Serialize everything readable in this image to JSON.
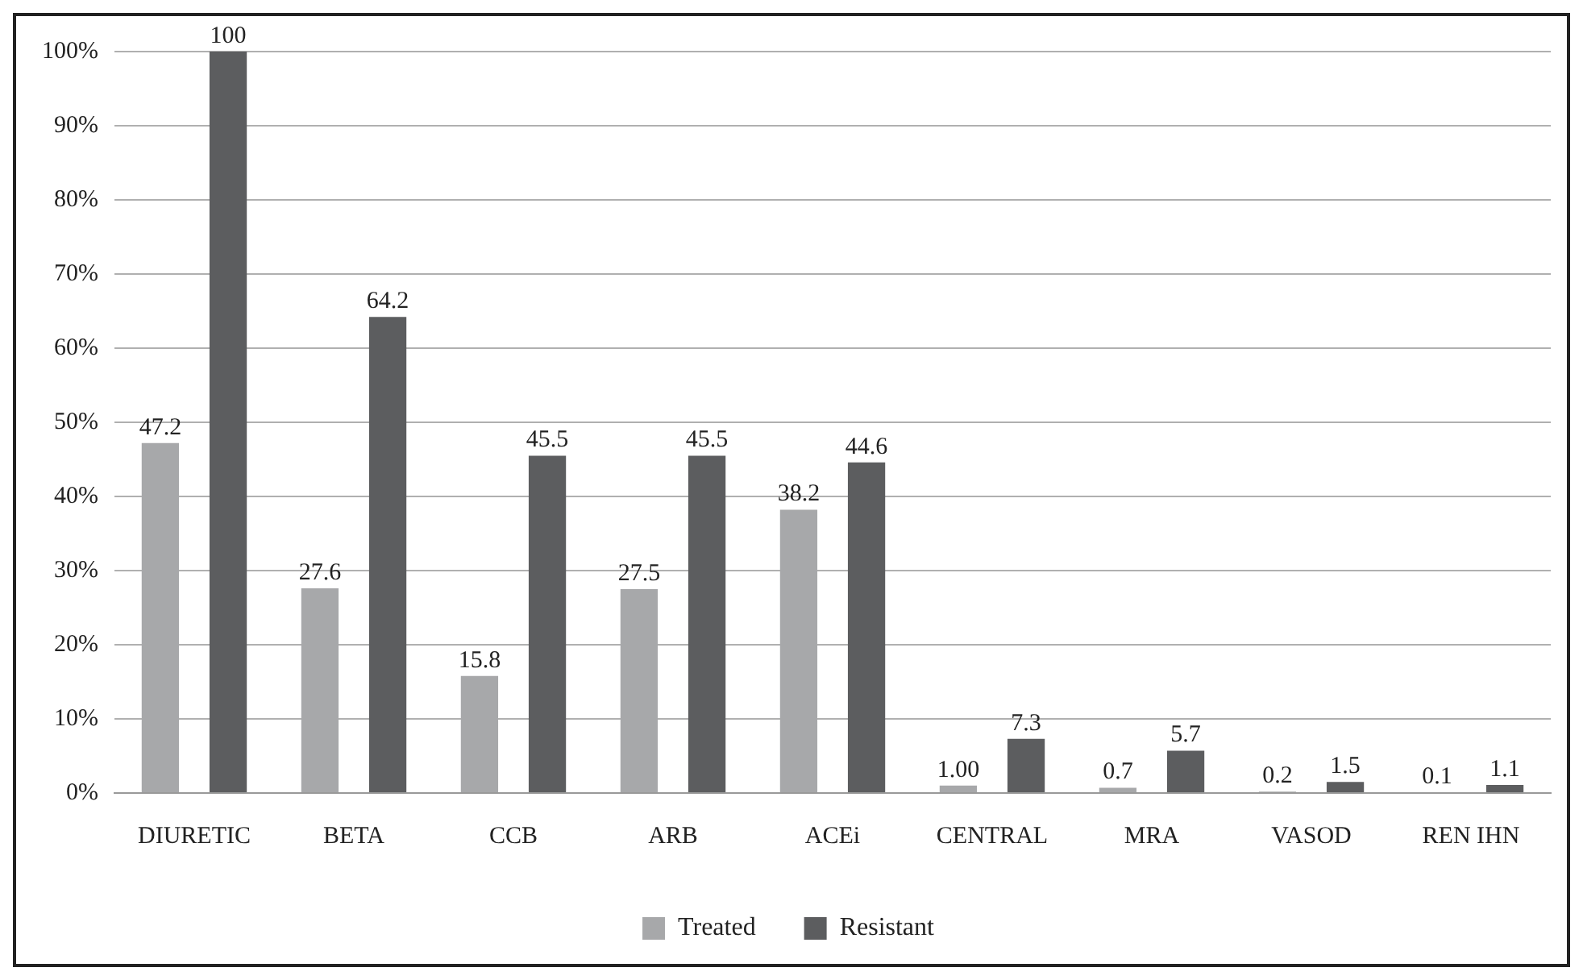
{
  "chart_data": {
    "type": "bar",
    "categories": [
      "DIURETIC",
      "BETA",
      "CCB",
      "ARB",
      "ACEi",
      "CENTRAL",
      "MRA",
      "VASOD",
      "REN IHN"
    ],
    "series": [
      {
        "name": "Treated",
        "color": "#a7a8aa",
        "values": [
          47.2,
          27.6,
          15.8,
          27.5,
          38.2,
          1.0,
          0.7,
          0.2,
          0.1
        ],
        "value_labels": [
          "47.2",
          "27.6",
          "15.8",
          "27.5",
          "38.2",
          "1.00",
          "0.7",
          "0.2",
          "0.1"
        ]
      },
      {
        "name": "Resistant",
        "color": "#5c5d5f",
        "values": [
          100,
          64.2,
          45.5,
          45.5,
          44.6,
          7.3,
          5.7,
          1.5,
          1.1
        ],
        "value_labels": [
          "100",
          "64.2",
          "45.5",
          "45.5",
          "44.6",
          "7.3",
          "5.7",
          "1.5",
          "1.1"
        ]
      }
    ],
    "ylim": [
      0,
      100
    ],
    "yticks": [
      {
        "value": 0,
        "label": "0%"
      },
      {
        "value": 10,
        "label": "10%"
      },
      {
        "value": 20,
        "label": "20%"
      },
      {
        "value": 30,
        "label": "30%"
      },
      {
        "value": 40,
        "label": "40%"
      },
      {
        "value": 50,
        "label": "50%"
      },
      {
        "value": 60,
        "label": "60%"
      },
      {
        "value": 70,
        "label": "70%"
      },
      {
        "value": 80,
        "label": "80%"
      },
      {
        "value": 90,
        "label": "90%"
      },
      {
        "value": 100,
        "label": "100%"
      }
    ],
    "grid": "y",
    "legend": "bottom"
  }
}
